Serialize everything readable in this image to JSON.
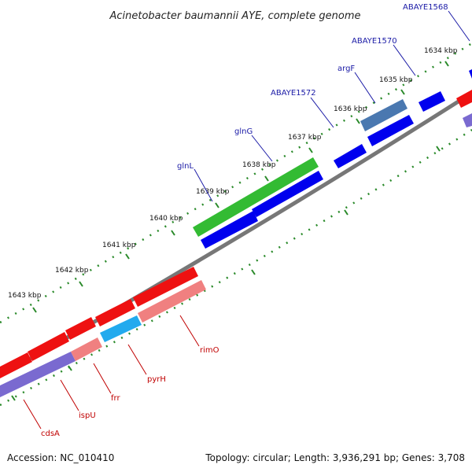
{
  "title": "Acinetobacter baumannii AYE, complete genome",
  "footer": {
    "accession": "Accession: NC_010410",
    "summary": "Topology: circular; Length: 3,936,291 bp; Genes: 3,708"
  },
  "kbp_ticks": [
    "1634 kbp",
    "1635 kbp",
    "1636 kbp",
    "1637 kbp",
    "1638 kbp",
    "1639 kbp",
    "1640 kbp",
    "1641 kbp",
    "1642 kbp",
    "1643 kbp"
  ],
  "forward_genes": [
    {
      "name": "glnL",
      "color": "#33bb33"
    },
    {
      "name": "glnG",
      "color": "#0000ee"
    },
    {
      "name": "ABAYE1572",
      "color": "#0000ee"
    },
    {
      "name": "argF",
      "color": "#4a78b0"
    },
    {
      "name": "ABAYE1570",
      "color": "#0000ee"
    },
    {
      "name": "ABAYE1568",
      "color": "#0000ee"
    }
  ],
  "reverse_genes": [
    {
      "name": "cdsA",
      "color": "#ee1111"
    },
    {
      "name": "ispU",
      "color": "#ee1111"
    },
    {
      "name": "frr",
      "color": "#f08080"
    },
    {
      "name": "pyrH",
      "color": "#22aaee"
    },
    {
      "name": "rimO",
      "color": "#f08080"
    }
  ],
  "colors": {
    "backbone": "#777777",
    "tick": "#2a8a2a",
    "purple_band": "#7a6ad0"
  }
}
